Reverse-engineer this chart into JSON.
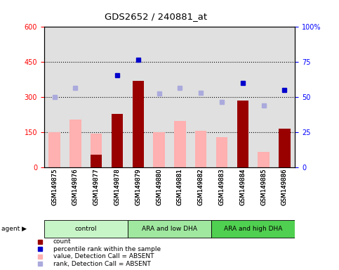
{
  "title": "GDS2652 / 240881_at",
  "samples": [
    "GSM149875",
    "GSM149876",
    "GSM149877",
    "GSM149878",
    "GSM149879",
    "GSM149880",
    "GSM149881",
    "GSM149882",
    "GSM149883",
    "GSM149884",
    "GSM149885",
    "GSM149886"
  ],
  "value_absent": [
    150,
    205,
    145,
    null,
    null,
    150,
    200,
    155,
    130,
    null,
    65,
    null
  ],
  "value_present": [
    null,
    null,
    null,
    null,
    null,
    null,
    null,
    null,
    null,
    null,
    null,
    165
  ],
  "count_dark": [
    null,
    null,
    55,
    230,
    370,
    null,
    null,
    null,
    null,
    285,
    null,
    165
  ],
  "rank_present": [
    null,
    null,
    null,
    395,
    460,
    null,
    null,
    null,
    null,
    360,
    null,
    330
  ],
  "rank_absent": [
    300,
    340,
    null,
    null,
    null,
    315,
    340,
    320,
    280,
    null,
    265,
    null
  ],
  "groups": [
    {
      "label": "control",
      "start": 0,
      "end": 4,
      "color": "#c8f5c8"
    },
    {
      "label": "ARA and low DHA",
      "start": 4,
      "end": 8,
      "color": "#a0e8a0"
    },
    {
      "label": "ARA and high DHA",
      "start": 8,
      "end": 12,
      "color": "#50d050"
    }
  ],
  "ylim_left": [
    0,
    600
  ],
  "ylim_right": [
    0,
    100
  ],
  "yticks_left": [
    0,
    150,
    300,
    450,
    600
  ],
  "yticks_right": [
    0,
    25,
    50,
    75,
    100
  ],
  "bar_color_dark": "#990000",
  "bar_color_light": "#ffb0b0",
  "dot_color_dark": "#0000cc",
  "dot_color_light": "#aaaadd",
  "bg_color": "#e0e0e0",
  "legend_items": [
    {
      "label": "count",
      "color": "#990000"
    },
    {
      "label": "percentile rank within the sample",
      "color": "#0000cc"
    },
    {
      "label": "value, Detection Call = ABSENT",
      "color": "#ffb0b0"
    },
    {
      "label": "rank, Detection Call = ABSENT",
      "color": "#aaaadd"
    }
  ]
}
